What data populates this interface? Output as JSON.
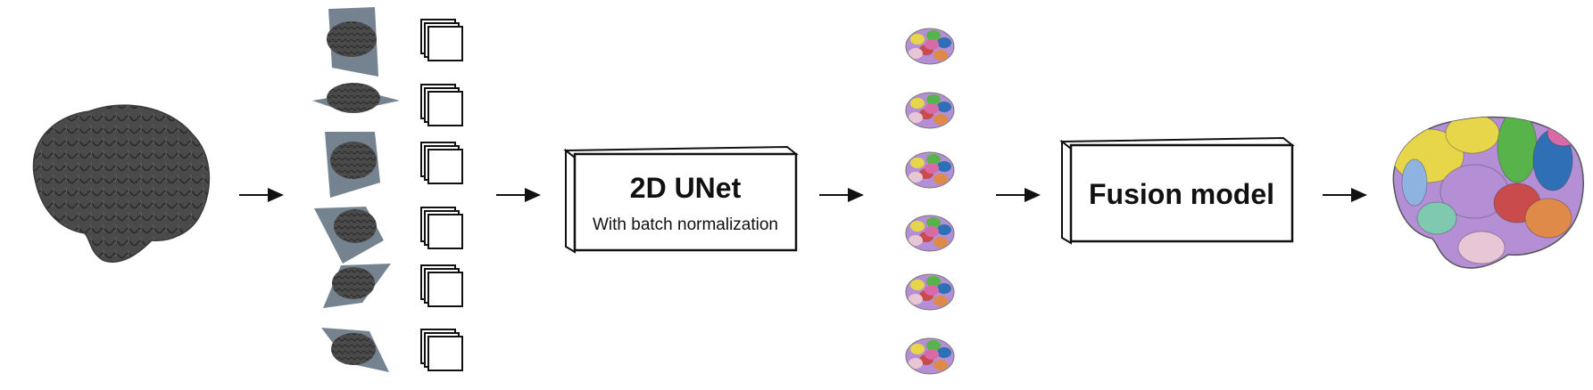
{
  "diagram": {
    "input_brain": {
      "label": "input-brain-surface"
    },
    "slice_planes": 6,
    "unet_box": {
      "title": "2D UNet",
      "subtitle": "With batch normalization"
    },
    "fusion_box": {
      "title": "Fusion model"
    },
    "segmentations": 6,
    "colors": {
      "brain_gray": "#4a4a4a",
      "brain_dark": "#2e2e2e",
      "plane": "#5d6d7e",
      "stroke": "#111111",
      "parcel": [
        "#b58fd6",
        "#e8d64a",
        "#58b34a",
        "#2f6fb5",
        "#c94b4b",
        "#e08a4a",
        "#e9c6d6",
        "#7fc9b0",
        "#d96aa8",
        "#8fb3e0"
      ]
    }
  }
}
